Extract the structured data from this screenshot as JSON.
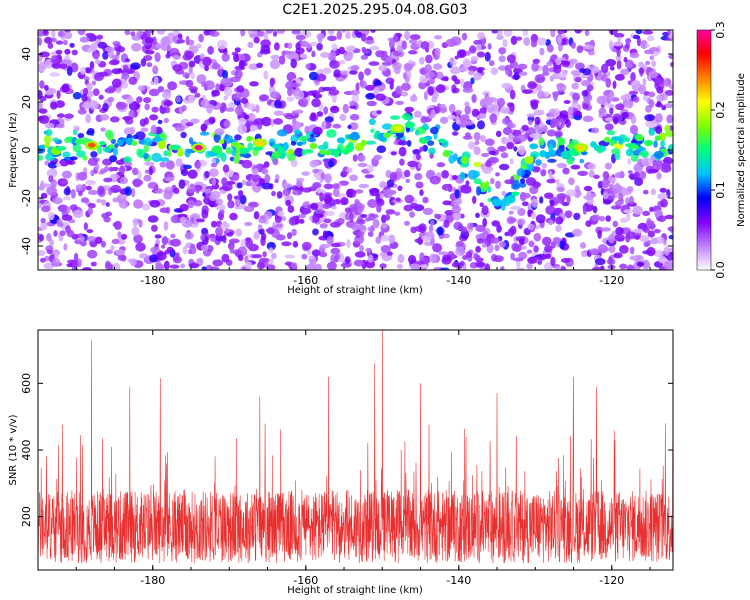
{
  "page": {
    "title": "C2E1.2025.295.04.08.G03"
  },
  "chart_data": [
    {
      "type": "heatmap",
      "title": "C2E1.2025.295.04.08.G03",
      "xlabel": "Height of straight line (km)",
      "ylabel": "Frequency (Hz)",
      "xlim": [
        -195,
        -112
      ],
      "ylim": [
        -50,
        50
      ],
      "xticks": [
        -180,
        -160,
        -140,
        -120
      ],
      "yticks": [
        -40,
        -20,
        0,
        20,
        40
      ],
      "colorbar": {
        "label": "Normalized spectral amplitude",
        "range": [
          0.0,
          0.3
        ],
        "ticks": [
          0.0,
          0.1,
          0.2,
          0.3
        ],
        "colors": [
          "#ffffff",
          "#c080ff",
          "#8000ff",
          "#0000ff",
          "#00c0ff",
          "#00ff80",
          "#80ff00",
          "#ffff00",
          "#ff8000",
          "#ff0000",
          "#ff00a0"
        ]
      },
      "ridge": {
        "description_values": [
          {
            "x": -195,
            "y": 2
          },
          {
            "x": -185,
            "y": 2
          },
          {
            "x": -175,
            "y": 1
          },
          {
            "x": -165,
            "y": 2
          },
          {
            "x": -155,
            "y": 1
          },
          {
            "x": -148,
            "y": 10
          },
          {
            "x": -143,
            "y": 5
          },
          {
            "x": -138,
            "y": -10
          },
          {
            "x": -134,
            "y": -25
          },
          {
            "x": -130,
            "y": 0
          },
          {
            "x": -120,
            "y": 2
          },
          {
            "x": -112,
            "y": 3
          }
        ],
        "peaks": [
          {
            "x": -188,
            "y": 2,
            "amplitude": 0.25
          },
          {
            "x": -174,
            "y": 1,
            "amplitude": 0.3
          },
          {
            "x": -166,
            "y": 3,
            "amplitude": 0.22
          },
          {
            "x": -148,
            "y": 9,
            "amplitude": 0.2
          },
          {
            "x": -124,
            "y": 1,
            "amplitude": 0.22
          }
        ]
      }
    },
    {
      "type": "line",
      "xlabel": "Height of straight line (km)",
      "ylabel": "SNR (10 * v/v)",
      "xlim": [
        -195,
        -112
      ],
      "ylim": [
        40,
        760
      ],
      "xticks": [
        -180,
        -160,
        -140,
        -120
      ],
      "yticks": [
        200,
        400,
        600
      ],
      "color": "#e83030",
      "baseline": 170,
      "spikes": [
        {
          "x": -188,
          "y": 730
        },
        {
          "x": -183,
          "y": 590
        },
        {
          "x": -179,
          "y": 615
        },
        {
          "x": -166,
          "y": 560
        },
        {
          "x": -157,
          "y": 620
        },
        {
          "x": -151,
          "y": 660
        },
        {
          "x": -150,
          "y": 760
        },
        {
          "x": -145,
          "y": 600
        },
        {
          "x": -135,
          "y": 570
        },
        {
          "x": -125,
          "y": 620
        },
        {
          "x": -122,
          "y": 590
        },
        {
          "x": -113,
          "y": 480
        }
      ]
    }
  ]
}
